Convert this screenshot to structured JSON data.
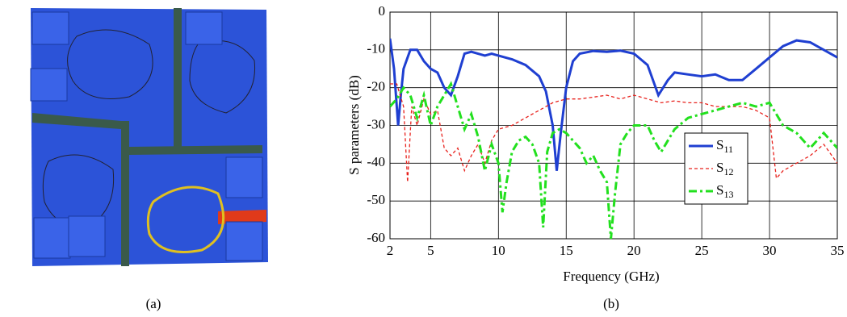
{
  "panels": [
    "(a)",
    "(b)"
  ],
  "chart_data": {
    "type": "line",
    "xlabel": "Frequency (GHz)",
    "ylabel": "S parameters (dB)",
    "xlim": [
      2,
      35
    ],
    "xticks": [
      2,
      5,
      10,
      15,
      20,
      25,
      30,
      35
    ],
    "ylim": [
      -60,
      0
    ],
    "yticks": [
      -60,
      -50,
      -40,
      -30,
      -20,
      -10,
      0
    ],
    "grid": true,
    "legend": "center right",
    "series": [
      {
        "name": "S11",
        "color": "#1f3fd1",
        "style": "solid",
        "x": [
          2,
          2.3,
          2.6,
          2.8,
          3,
          3.5,
          4,
          4.5,
          5,
          5.5,
          6,
          6.5,
          7,
          7.5,
          8,
          9,
          9.5,
          10,
          11,
          12,
          13,
          13.5,
          14,
          14.3,
          14.6,
          15,
          15.5,
          16,
          17,
          18,
          19,
          20,
          21,
          21.8,
          22.5,
          23,
          24,
          25,
          26,
          27,
          28,
          29,
          30,
          31,
          32,
          33,
          34,
          35
        ],
        "values": [
          -7,
          -15,
          -30,
          -22,
          -15,
          -10,
          -10,
          -13,
          -15,
          -16,
          -20,
          -22,
          -17,
          -11,
          -10.5,
          -11.5,
          -11,
          -11.5,
          -12.5,
          -14,
          -17,
          -21,
          -30,
          -42,
          -32,
          -20,
          -13,
          -11,
          -10.3,
          -10.5,
          -10.2,
          -11,
          -14,
          -22,
          -18,
          -16,
          -16.5,
          -17,
          -16.5,
          -18,
          -18,
          -15,
          -12,
          -9,
          -7.5,
          -8,
          -10,
          -12
        ]
      },
      {
        "name": "S12",
        "color": "#e8211c",
        "style": "dashed",
        "x": [
          2,
          2.5,
          3,
          3.3,
          3.6,
          4,
          4.5,
          5,
          5.5,
          6,
          6.5,
          7,
          7.5,
          8,
          8.5,
          9,
          9.5,
          10,
          11,
          12,
          13,
          14,
          15,
          16,
          17,
          18,
          19,
          20,
          21,
          22,
          23,
          24,
          25,
          26,
          27,
          28,
          29,
          30,
          30.5,
          31,
          32,
          33,
          34,
          35
        ],
        "values": [
          -19,
          -19,
          -25,
          -45,
          -25,
          -30,
          -23,
          -27,
          -26,
          -36,
          -38,
          -36,
          -42,
          -38,
          -35,
          -40,
          -34,
          -31,
          -30,
          -28,
          -26,
          -24,
          -23,
          -23,
          -22.5,
          -22,
          -23,
          -22,
          -23,
          -24,
          -23.5,
          -24,
          -24,
          -25,
          -25,
          -25,
          -26,
          -28,
          -44,
          -42,
          -40,
          -38,
          -35,
          -40
        ]
      },
      {
        "name": "S13",
        "color": "#22e01e",
        "style": "dashdot",
        "x": [
          2,
          2.5,
          3,
          3.5,
          4,
          4.5,
          5,
          5.5,
          6,
          6.5,
          7,
          7.5,
          8,
          8.5,
          9,
          9.5,
          10,
          10.3,
          10.6,
          11,
          11.5,
          12,
          12.5,
          13,
          13.3,
          13.6,
          14,
          14.5,
          15,
          16,
          16.5,
          17,
          17.5,
          18,
          18.3,
          18.6,
          19,
          19.5,
          20,
          21,
          21.5,
          22,
          23,
          24,
          25,
          26,
          27,
          28,
          29,
          30,
          31,
          32,
          33,
          34,
          35
        ],
        "values": [
          -25,
          -23,
          -20,
          -22,
          -28,
          -22,
          -30,
          -25,
          -22,
          -19,
          -25,
          -31,
          -27,
          -33,
          -42,
          -35,
          -40,
          -53,
          -45,
          -37,
          -34,
          -33,
          -35,
          -40,
          -57,
          -37,
          -32,
          -31,
          -32,
          -36,
          -40,
          -38,
          -42,
          -45,
          -60,
          -48,
          -35,
          -32,
          -30,
          -30,
          -34,
          -37,
          -31,
          -28,
          -27,
          -26,
          -25,
          -24,
          -25,
          -24,
          -30,
          -32,
          -36,
          -32,
          -36
        ]
      }
    ]
  }
}
